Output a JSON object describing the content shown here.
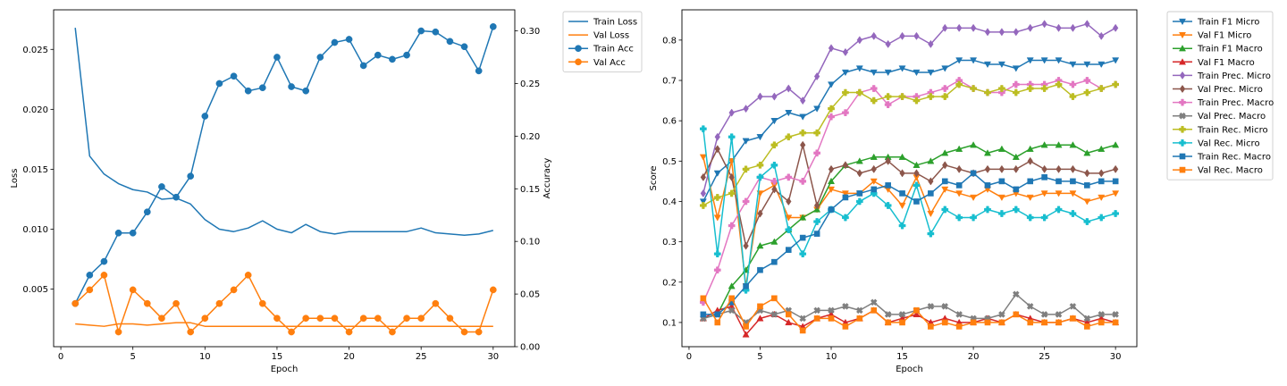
{
  "chart_data": [
    {
      "type": "line",
      "title": "",
      "xlabel": "Epoch",
      "ylabel": "Loss",
      "y2label": "Accuracy",
      "xlim": [
        -0.5,
        31.5
      ],
      "ylim": [
        0.0002,
        0.0283
      ],
      "y2lim": [
        0.0,
        0.32
      ],
      "xticks": [
        0,
        5,
        10,
        15,
        20,
        25,
        30
      ],
      "yticks": [
        0.005,
        0.01,
        0.015,
        0.02,
        0.025
      ],
      "ytick_labels": [
        "0.005",
        "0.010",
        "0.015",
        "0.020",
        "0.025"
      ],
      "y2ticks": [
        0.0,
        0.05,
        0.1,
        0.15,
        0.2,
        0.25,
        0.3
      ],
      "y2tick_labels": [
        "0.00",
        "0.05",
        "0.10",
        "0.15",
        "0.20",
        "0.25",
        "0.30"
      ],
      "grid": false,
      "legend_position": "outside upper-right",
      "x": [
        1,
        2,
        3,
        4,
        5,
        6,
        7,
        8,
        9,
        10,
        11,
        12,
        13,
        14,
        15,
        16,
        17,
        18,
        19,
        20,
        21,
        22,
        23,
        24,
        25,
        26,
        27,
        28,
        29,
        30
      ],
      "series": [
        {
          "name": "Train Loss",
          "axis": "left",
          "color": "#1f77b4",
          "marker": "none",
          "values": [
            0.0268,
            0.0161,
            0.0146,
            0.0138,
            0.0133,
            0.0131,
            0.0125,
            0.0126,
            0.0121,
            0.0108,
            0.01,
            0.0098,
            0.0101,
            0.0107,
            0.01,
            0.0097,
            0.0104,
            0.0098,
            0.0096,
            0.0098,
            0.0098,
            0.0098,
            0.0098,
            0.0098,
            0.0101,
            0.0097,
            0.0096,
            0.0095,
            0.0096,
            0.0099
          ]
        },
        {
          "name": "Val Loss",
          "axis": "left",
          "color": "#ff7f0e",
          "marker": "none",
          "values": [
            0.0021,
            0.002,
            0.0019,
            0.0021,
            0.0021,
            0.002,
            0.0021,
            0.0022,
            0.0022,
            0.0019,
            0.0019,
            0.0019,
            0.0019,
            0.0019,
            0.0019,
            0.0019,
            0.0019,
            0.0019,
            0.0019,
            0.0019,
            0.0019,
            0.0019,
            0.0019,
            0.0019,
            0.0019,
            0.0019,
            0.0019,
            0.0019,
            0.0019,
            0.0019
          ]
        },
        {
          "name": "Train Acc",
          "axis": "right",
          "color": "#1f77b4",
          "marker": "circle",
          "values": [
            0.041,
            0.068,
            0.081,
            0.108,
            0.108,
            0.128,
            0.152,
            0.142,
            0.162,
            0.219,
            0.25,
            0.257,
            0.243,
            0.246,
            0.275,
            0.247,
            0.243,
            0.275,
            0.289,
            0.292,
            0.267,
            0.277,
            0.273,
            0.277,
            0.3,
            0.299,
            0.29,
            0.285,
            0.262,
            0.304
          ]
        },
        {
          "name": "Val Acc",
          "axis": "right",
          "color": "#ff7f0e",
          "marker": "circle",
          "values": [
            0.041,
            0.054,
            0.068,
            0.014,
            0.054,
            0.041,
            0.027,
            0.041,
            0.014,
            0.027,
            0.041,
            0.054,
            0.068,
            0.041,
            0.027,
            0.014,
            0.027,
            0.027,
            0.027,
            0.014,
            0.027,
            0.027,
            0.014,
            0.027,
            0.027,
            0.041,
            0.027,
            0.014,
            0.014,
            0.054
          ]
        }
      ]
    },
    {
      "type": "line",
      "title": "",
      "xlabel": "Epoch",
      "ylabel": "Score",
      "xlim": [
        -0.5,
        31.5
      ],
      "ylim": [
        0.04,
        0.875
      ],
      "xticks": [
        0,
        5,
        10,
        15,
        20,
        25,
        30
      ],
      "yticks": [
        0.1,
        0.2,
        0.3,
        0.4,
        0.5,
        0.6,
        0.7,
        0.8
      ],
      "ytick_labels": [
        "0.1",
        "0.2",
        "0.3",
        "0.4",
        "0.5",
        "0.6",
        "0.7",
        "0.8"
      ],
      "grid": false,
      "legend_position": "outside upper-right",
      "x": [
        1,
        2,
        3,
        4,
        5,
        6,
        7,
        8,
        9,
        10,
        11,
        12,
        13,
        14,
        15,
        16,
        17,
        18,
        19,
        20,
        21,
        22,
        23,
        24,
        25,
        26,
        27,
        28,
        29,
        30
      ],
      "series": [
        {
          "name": "Train F1 Micro",
          "color": "#1f77b4",
          "marker": "tri-down",
          "values": [
            0.4,
            0.47,
            0.5,
            0.55,
            0.56,
            0.6,
            0.62,
            0.61,
            0.63,
            0.69,
            0.72,
            0.73,
            0.72,
            0.72,
            0.73,
            0.72,
            0.72,
            0.73,
            0.75,
            0.75,
            0.74,
            0.74,
            0.73,
            0.75,
            0.75,
            0.75,
            0.74,
            0.74,
            0.74,
            0.75
          ]
        },
        {
          "name": "Val F1 Micro",
          "color": "#ff7f0e",
          "marker": "tri-down",
          "values": [
            0.51,
            0.36,
            0.5,
            0.19,
            0.42,
            0.44,
            0.36,
            0.36,
            0.38,
            0.43,
            0.42,
            0.42,
            0.45,
            0.43,
            0.39,
            0.46,
            0.37,
            0.43,
            0.42,
            0.41,
            0.43,
            0.41,
            0.42,
            0.41,
            0.42,
            0.42,
            0.42,
            0.4,
            0.41,
            0.42
          ]
        },
        {
          "name": "Train F1 Macro",
          "color": "#2ca02c",
          "marker": "tri-up",
          "values": [
            0.11,
            0.12,
            0.19,
            0.23,
            0.29,
            0.3,
            0.33,
            0.36,
            0.38,
            0.45,
            0.49,
            0.5,
            0.51,
            0.51,
            0.51,
            0.49,
            0.5,
            0.52,
            0.53,
            0.54,
            0.52,
            0.53,
            0.51,
            0.53,
            0.54,
            0.54,
            0.54,
            0.52,
            0.53,
            0.54
          ]
        },
        {
          "name": "Val F1 Macro",
          "color": "#d62728",
          "marker": "tri-up",
          "values": [
            0.11,
            0.13,
            0.14,
            0.07,
            0.11,
            0.12,
            0.1,
            0.09,
            0.11,
            0.12,
            0.1,
            0.11,
            0.13,
            0.1,
            0.11,
            0.12,
            0.1,
            0.11,
            0.1,
            0.1,
            0.11,
            0.1,
            0.12,
            0.11,
            0.1,
            0.1,
            0.11,
            0.1,
            0.11,
            0.1
          ]
        },
        {
          "name": "Train Prec. Micro",
          "color": "#9467bd",
          "marker": "diamond",
          "values": [
            0.42,
            0.56,
            0.62,
            0.63,
            0.66,
            0.66,
            0.68,
            0.65,
            0.71,
            0.78,
            0.77,
            0.8,
            0.81,
            0.79,
            0.81,
            0.81,
            0.79,
            0.83,
            0.83,
            0.83,
            0.82,
            0.82,
            0.82,
            0.83,
            0.84,
            0.83,
            0.83,
            0.84,
            0.81,
            0.83
          ]
        },
        {
          "name": "Val Prec. Micro",
          "color": "#8c564b",
          "marker": "diamond",
          "values": [
            0.46,
            0.53,
            0.46,
            0.29,
            0.37,
            0.43,
            0.4,
            0.54,
            0.39,
            0.48,
            0.49,
            0.47,
            0.48,
            0.5,
            0.47,
            0.47,
            0.45,
            0.49,
            0.48,
            0.47,
            0.48,
            0.48,
            0.48,
            0.5,
            0.48,
            0.48,
            0.48,
            0.47,
            0.47,
            0.48
          ]
        },
        {
          "name": "Train Prec. Macro",
          "color": "#e377c2",
          "marker": "plus-filled",
          "values": [
            0.15,
            0.23,
            0.34,
            0.4,
            0.46,
            0.45,
            0.46,
            0.45,
            0.52,
            0.61,
            0.62,
            0.67,
            0.68,
            0.64,
            0.66,
            0.66,
            0.67,
            0.68,
            0.7,
            0.68,
            0.67,
            0.67,
            0.69,
            0.69,
            0.69,
            0.7,
            0.69,
            0.7,
            0.68,
            0.69
          ]
        },
        {
          "name": "Val Prec. Macro",
          "color": "#7f7f7f",
          "marker": "x-filled",
          "values": [
            0.11,
            0.12,
            0.13,
            0.1,
            0.13,
            0.12,
            0.13,
            0.11,
            0.13,
            0.13,
            0.14,
            0.13,
            0.15,
            0.12,
            0.12,
            0.13,
            0.14,
            0.14,
            0.12,
            0.11,
            0.11,
            0.12,
            0.17,
            0.14,
            0.12,
            0.12,
            0.14,
            0.11,
            0.12,
            0.12
          ]
        },
        {
          "name": "Train Rec. Micro",
          "color": "#bcbd22",
          "marker": "plus-filled",
          "values": [
            0.39,
            0.41,
            0.42,
            0.48,
            0.49,
            0.54,
            0.56,
            0.57,
            0.57,
            0.63,
            0.67,
            0.67,
            0.65,
            0.66,
            0.66,
            0.65,
            0.66,
            0.66,
            0.69,
            0.68,
            0.67,
            0.68,
            0.67,
            0.68,
            0.68,
            0.69,
            0.66,
            0.67,
            0.68,
            0.69
          ]
        },
        {
          "name": "Val Rec. Micro",
          "color": "#17becf",
          "marker": "plus-filled",
          "values": [
            0.58,
            0.27,
            0.56,
            0.18,
            0.46,
            0.49,
            0.33,
            0.27,
            0.35,
            0.38,
            0.36,
            0.4,
            0.42,
            0.39,
            0.34,
            0.44,
            0.32,
            0.38,
            0.36,
            0.36,
            0.38,
            0.37,
            0.38,
            0.36,
            0.36,
            0.38,
            0.37,
            0.35,
            0.36,
            0.37
          ]
        },
        {
          "name": "Train Rec. Macro",
          "color": "#1f77b4",
          "marker": "square",
          "values": [
            0.12,
            0.12,
            0.15,
            0.19,
            0.23,
            0.25,
            0.28,
            0.31,
            0.32,
            0.38,
            0.41,
            0.42,
            0.43,
            0.44,
            0.42,
            0.4,
            0.42,
            0.45,
            0.44,
            0.47,
            0.44,
            0.45,
            0.43,
            0.45,
            0.46,
            0.45,
            0.45,
            0.44,
            0.45,
            0.45
          ]
        },
        {
          "name": "Val Rec. Macro",
          "color": "#ff7f0e",
          "marker": "square",
          "values": [
            0.16,
            0.1,
            0.16,
            0.09,
            0.14,
            0.16,
            0.12,
            0.08,
            0.11,
            0.11,
            0.09,
            0.11,
            0.13,
            0.1,
            0.1,
            0.13,
            0.09,
            0.1,
            0.09,
            0.1,
            0.1,
            0.1,
            0.12,
            0.1,
            0.1,
            0.1,
            0.11,
            0.09,
            0.1,
            0.1
          ]
        }
      ]
    }
  ]
}
